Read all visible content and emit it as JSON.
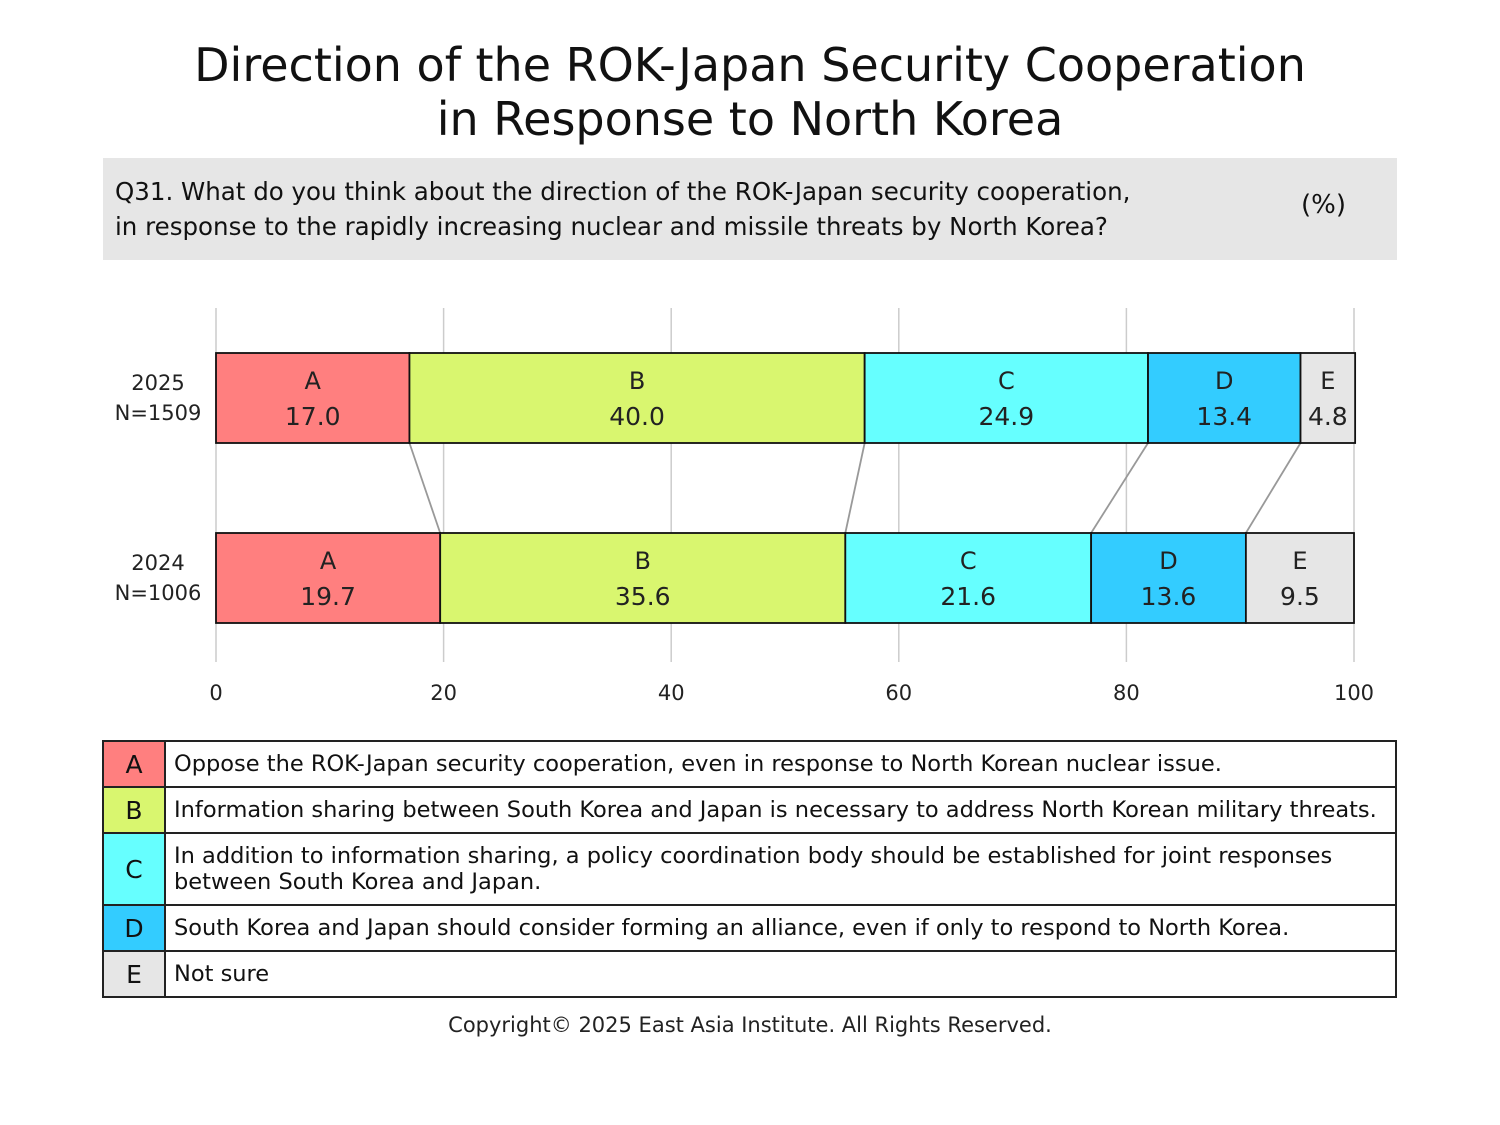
{
  "title": [
    "Direction of the ROK-Japan Security Cooperation",
    "in Response to North Korea"
  ],
  "question": {
    "lines": [
      "Q31. What do you think about the direction of the ROK-Japan security cooperation,",
      "in response to the rapidly increasing nuclear and missile threats by North Korea?"
    ],
    "unit": "(%)"
  },
  "chart_data": {
    "type": "bar",
    "orientation": "horizontal",
    "stacked": true,
    "xlim": [
      0,
      100
    ],
    "xticks": [
      0,
      20,
      40,
      60,
      80,
      100
    ],
    "grid": true,
    "categories": [
      {
        "year": "2025",
        "n": "N=1509"
      },
      {
        "year": "2024",
        "n": "N=1006"
      }
    ],
    "segments": [
      "A",
      "B",
      "C",
      "D",
      "E"
    ],
    "colors": {
      "A": "#ff7f7f",
      "B": "#d9f66f",
      "C": "#66ffff",
      "D": "#33ccff",
      "E": "#e6e6e6"
    },
    "series": [
      {
        "name": "A",
        "values": [
          17.0,
          19.7
        ],
        "labels": [
          "17.0",
          "19.7"
        ]
      },
      {
        "name": "B",
        "values": [
          40.0,
          35.6
        ],
        "labels": [
          "40.0",
          "35.6"
        ]
      },
      {
        "name": "C",
        "values": [
          24.9,
          21.6
        ],
        "labels": [
          "24.9",
          "21.6"
        ]
      },
      {
        "name": "D",
        "values": [
          13.4,
          13.6
        ],
        "labels": [
          "13.4",
          "13.6"
        ]
      },
      {
        "name": "E",
        "values": [
          4.8,
          9.5
        ],
        "labels": [
          "4.8",
          "9.5"
        ]
      }
    ]
  },
  "legend": [
    {
      "key": "A",
      "lines": [
        "Oppose the ROK-Japan security cooperation, even in response to North Korean nuclear issue."
      ]
    },
    {
      "key": "B",
      "lines": [
        "Information sharing between South Korea and Japan is necessary to address North Korean military threats."
      ]
    },
    {
      "key": "C",
      "lines": [
        "In addition to information sharing, a policy coordination body should be established for joint responses",
        "between South Korea and Japan."
      ]
    },
    {
      "key": "D",
      "lines": [
        "South Korea and Japan should consider forming an alliance, even if only to respond to North Korea."
      ]
    },
    {
      "key": "E",
      "lines": [
        "Not sure"
      ]
    }
  ],
  "footer": "Copyright© 2025 East Asia Institute. All Rights Reserved."
}
